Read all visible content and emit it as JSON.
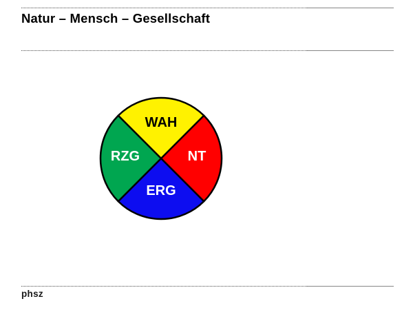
{
  "header": {
    "title": "Natur – Mensch – Gesellschaft"
  },
  "footer": {
    "label": "phsz"
  },
  "chart_data": {
    "type": "pie",
    "title": "Natur – Mensch – Gesellschaft",
    "legend_position": "none",
    "rotation_deg": 45,
    "outline_color": "#000000",
    "segments": [
      {
        "label": "WAH",
        "value": 25,
        "position": "top",
        "color": "#FFF200",
        "label_color": "#000000"
      },
      {
        "label": "NT",
        "value": 25,
        "position": "right",
        "color": "#FF0000",
        "label_color": "#FFFFFF"
      },
      {
        "label": "ERG",
        "value": 25,
        "position": "bottom",
        "color": "#0D0DF0",
        "label_color": "#FFFFFF"
      },
      {
        "label": "RZG",
        "value": 25,
        "position": "left",
        "color": "#00A650",
        "label_color": "#FFFFFF"
      }
    ]
  }
}
